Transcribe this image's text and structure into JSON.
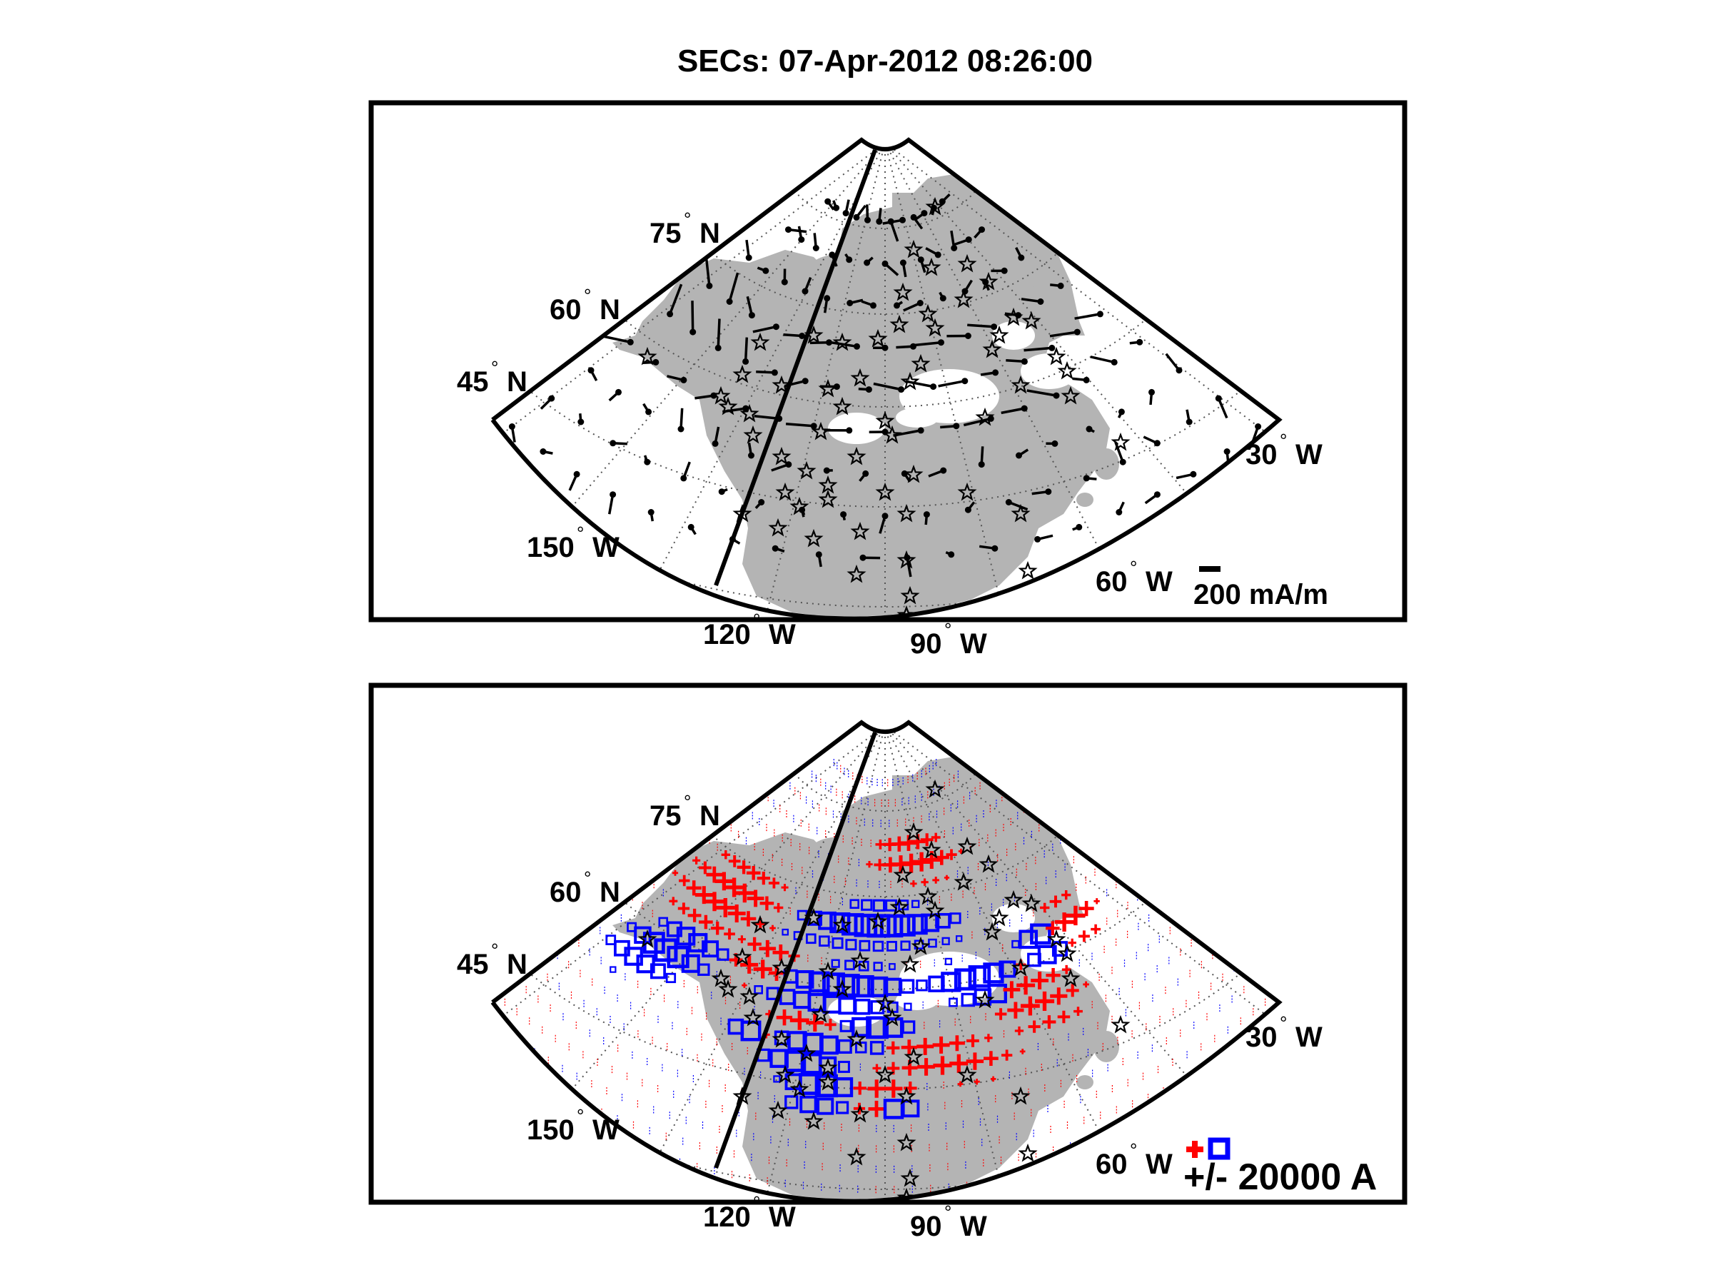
{
  "figure": {
    "title": "SECs: 07-Apr-2012 08:26:00"
  },
  "map_labels": {
    "lat_75": "75",
    "lat_60": "60",
    "lat_45": "45",
    "lat_suffix": "N",
    "lon_150": "150",
    "lon_120": "120",
    "lon_90": "90",
    "lon_60": "60",
    "lon_30": "30",
    "lon_suffix": "W"
  },
  "panel_top": {
    "scale_label": "200 mA/m",
    "station_marker": "star",
    "vector_marker": "dot with tail"
  },
  "panel_bottom": {
    "scale_label": "+/- 20000 A",
    "positive_color": "#ff0000",
    "negative_color": "#0000ff",
    "positive_marker": "plus",
    "negative_marker": "square"
  },
  "colors": {
    "land": "#b4b4b4",
    "frame": "#000000",
    "grid": "#555555",
    "station": "#000000"
  }
}
